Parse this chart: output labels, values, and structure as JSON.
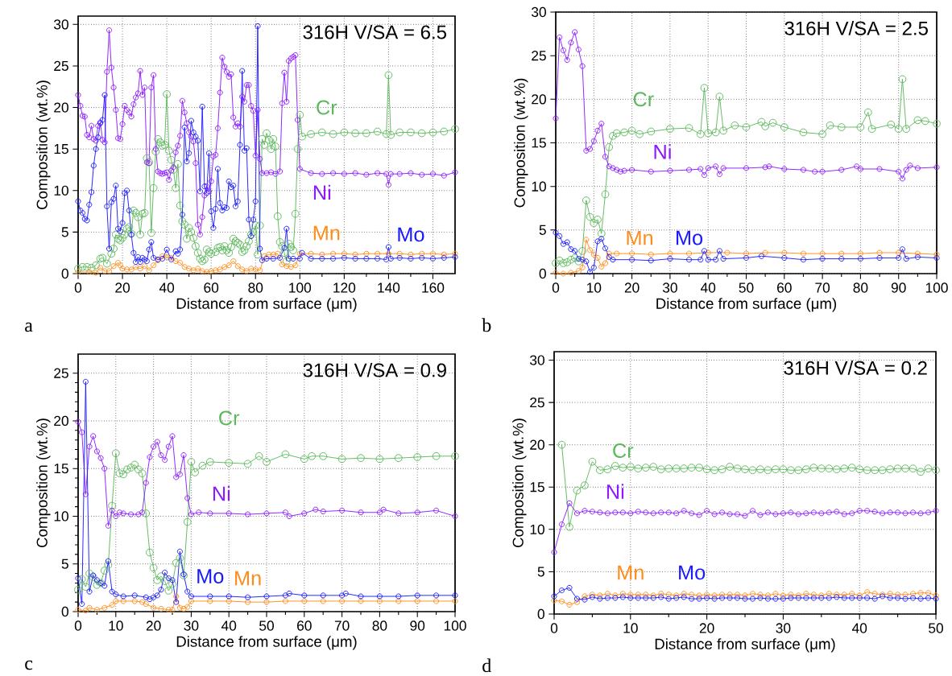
{
  "chart_data": [
    {
      "type": "line",
      "title": "316H V/SA = 6.5",
      "xlabel": "Distance from surface (μm)",
      "ylabel": "Composition (wt.%)",
      "annotations": [
        "a"
      ],
      "grid": true,
      "marker": "circle",
      "xlim": [
        0,
        170
      ],
      "xticks": [
        0,
        20,
        40,
        60,
        80,
        100,
        120,
        140,
        160
      ],
      "ylim": [
        0,
        31
      ],
      "yticks": [
        0,
        5,
        10,
        15,
        20,
        25,
        30
      ],
      "series": [
        {
          "name": "Cr",
          "color": "#5cb85c",
          "x": [
            0,
            2,
            4,
            6,
            8,
            10,
            11,
            13,
            15,
            16,
            17,
            18,
            19,
            20,
            21,
            22,
            23,
            24,
            25,
            26,
            27,
            28,
            29,
            30,
            31,
            32,
            33,
            34,
            35,
            36,
            37,
            38,
            39,
            40,
            41,
            42,
            43,
            44,
            45,
            46,
            47,
            48,
            49,
            50,
            51,
            52,
            53,
            54,
            55,
            56,
            57,
            58,
            59,
            60,
            62,
            63,
            64,
            65,
            66,
            67,
            68,
            69,
            70,
            71,
            72,
            73,
            74,
            75,
            76,
            77,
            78,
            79,
            80,
            81,
            82,
            83,
            84,
            85,
            86,
            87,
            88,
            89,
            90,
            91,
            92,
            93,
            94,
            95,
            96,
            97,
            98,
            99,
            100,
            101,
            105,
            110,
            115,
            120,
            125,
            130,
            135,
            139,
            140,
            141,
            145,
            150,
            155,
            160,
            165,
            170
          ],
          "values": [
            0.6,
            0.8,
            0.8,
            0.7,
            1.0,
            1.8,
            1.9,
            1.2,
            2.4,
            3.0,
            4.7,
            4.2,
            4.0,
            4.3,
            4.7,
            5.4,
            5.6,
            4.8,
            7.6,
            7.3,
            6.8,
            4.7,
            7.2,
            7.3,
            13.9,
            13.4,
            4.9,
            10.3,
            14.7,
            16.2,
            15.8,
            15.4,
            15.5,
            21.6,
            14.8,
            13.7,
            12.5,
            10.3,
            13.2,
            8.2,
            6.3,
            5.9,
            4.2,
            5.5,
            5.0,
            4.3,
            3.3,
            2.5,
            1.8,
            1.5,
            1.7,
            2.9,
            2.6,
            2.4,
            2.6,
            3.1,
            3.2,
            2.8,
            3.3,
            2.8,
            2.5,
            3.2,
            4.2,
            3.9,
            3.7,
            3.5,
            2.6,
            2.8,
            3.3,
            3.9,
            4.7,
            5.0,
            5.8,
            2.3,
            5.8,
            16.2,
            15.5,
            16.9,
            16.1,
            15.0,
            16.2,
            15.3,
            6.9,
            3.8,
            3.3,
            2.5,
            1.5,
            3.6,
            3.2,
            2.8,
            7.2,
            15.0,
            19.1,
            16.5,
            16.8,
            17.0,
            16.8,
            17.0,
            16.9,
            16.9,
            17.1,
            16.8,
            23.9,
            16.7,
            17.0,
            17.0,
            16.9,
            17.0,
            17.1,
            17.4
          ]
        },
        {
          "name": "Ni",
          "color": "#8c1aff",
          "x": [
            0,
            1,
            2,
            3,
            4,
            5,
            6,
            7,
            8,
            9,
            10,
            11,
            12,
            13,
            14,
            15,
            16,
            17,
            18,
            19,
            20,
            21,
            22,
            23,
            24,
            25,
            26,
            27,
            28,
            29,
            30,
            31,
            32,
            33,
            34,
            35,
            36,
            37,
            38,
            39,
            40,
            41,
            42,
            43,
            44,
            45,
            46,
            47,
            48,
            49,
            50,
            51,
            52,
            53,
            54,
            55,
            56,
            57,
            58,
            59,
            60,
            61,
            62,
            63,
            64,
            65,
            66,
            67,
            68,
            69,
            70,
            71,
            72,
            73,
            74,
            75,
            76,
            77,
            78,
            79,
            80,
            81,
            82,
            83,
            85,
            87,
            89,
            91,
            92,
            93,
            94,
            95,
            96,
            97,
            98,
            99,
            100,
            105,
            110,
            115,
            120,
            125,
            130,
            135,
            139,
            140,
            141,
            145,
            150,
            155,
            160,
            165,
            170
          ],
          "values": [
            21.5,
            20.2,
            19.0,
            18.9,
            16.7,
            16.4,
            17.8,
            16.2,
            16.0,
            17.8,
            18.2,
            16.1,
            15.8,
            24.3,
            29.3,
            24.8,
            22.4,
            19.7,
            16.3,
            16.2,
            18.0,
            20.2,
            19.7,
            19.4,
            18.9,
            20.4,
            21.2,
            21.7,
            24.4,
            21.5,
            22.4,
            13.4,
            13.3,
            22.4,
            23.9,
            15.0,
            12.3,
            12.1,
            12.0,
            12.1,
            12.2,
            11.3,
            12.4,
            12.8,
            14.6,
            15.4,
            16.6,
            20.8,
            19.4,
            18.1,
            17.0,
            16.5,
            15.9,
            13.3,
            5.9,
            4.7,
            6.8,
            9.4,
            10.5,
            9.9,
            11.1,
            14.1,
            14.3,
            17.5,
            21.8,
            26.0,
            24.9,
            24.3,
            23.7,
            24.0,
            18.8,
            17.7,
            18.1,
            17.7,
            21.3,
            20.7,
            22.7,
            22.7,
            20.2,
            19.6,
            14.2,
            19.7,
            13.8,
            12.1,
            12.1,
            12.2,
            12.0,
            12.3,
            20.5,
            24.2,
            20.7,
            25.6,
            25.9,
            26.1,
            26.3,
            18.5,
            12.6,
            12.1,
            12.0,
            12.1,
            12.0,
            12.1,
            11.9,
            12.1,
            12.0,
            10.7,
            12.0,
            12.0,
            12.1,
            11.9,
            12.0,
            11.8,
            12.2
          ]
        },
        {
          "name": "Mn",
          "color": "#ff8c1a",
          "x": [
            0,
            5,
            8,
            10,
            12,
            14,
            16,
            18,
            19,
            20,
            22,
            24,
            26,
            28,
            30,
            32,
            34,
            36,
            38,
            40,
            42,
            44,
            46,
            48,
            50,
            52,
            54,
            56,
            58,
            60,
            62,
            64,
            66,
            68,
            70,
            72,
            74,
            76,
            78,
            80,
            82,
            84,
            86,
            88,
            90,
            92,
            94,
            96,
            98,
            100,
            105,
            110,
            115,
            120,
            125,
            130,
            135,
            140,
            145,
            150,
            155,
            160,
            165,
            170
          ],
          "values": [
            0.2,
            0.2,
            0.1,
            0.7,
            0.3,
            0.3,
            0.9,
            1.3,
            1.0,
            0.6,
            0.5,
            0.5,
            0.8,
            0.6,
            0.9,
            0.4,
            1.0,
            1.6,
            2.1,
            2.0,
            1.9,
            1.5,
            1.3,
            0.8,
            0.6,
            0.4,
            0.6,
            0.3,
            0.2,
            0.3,
            0.4,
            0.5,
            0.8,
            1.0,
            1.5,
            0.9,
            0.5,
            0.3,
            0.6,
            0.5,
            0.4,
            2.1,
            2.3,
            2.3,
            2.4,
            1.1,
            0.9,
            0.8,
            1.0,
            2.4,
            2.4,
            2.3,
            2.4,
            2.4,
            2.3,
            2.4,
            2.4,
            2.4,
            2.4,
            2.3,
            2.4,
            2.4,
            2.3,
            2.4
          ]
        },
        {
          "name": "Mo",
          "color": "#1a1aff",
          "x": [
            0,
            1,
            2,
            3,
            4,
            5,
            6,
            7,
            8,
            9,
            10,
            11,
            12,
            13,
            14,
            15,
            16,
            17,
            18,
            19,
            20,
            21,
            22,
            23,
            24,
            25,
            26,
            27,
            28,
            29,
            30,
            31,
            32,
            33,
            34,
            36,
            38,
            40,
            42,
            44,
            45,
            46,
            47,
            48,
            49,
            50,
            51,
            52,
            53,
            54,
            55,
            56,
            57,
            58,
            59,
            60,
            61,
            62,
            63,
            64,
            65,
            66,
            67,
            68,
            69,
            70,
            71,
            72,
            73,
            74,
            75,
            76,
            77,
            78,
            79,
            80,
            81,
            82,
            83,
            85,
            88,
            91,
            93,
            94,
            95,
            97,
            100,
            101,
            105,
            110,
            115,
            120,
            125,
            130,
            135,
            139,
            140,
            141,
            145,
            150,
            155,
            160,
            165,
            170
          ],
          "values": [
            8.7,
            7.6,
            7.3,
            6.6,
            6.4,
            8.3,
            9.8,
            13.0,
            15.0,
            16.4,
            18.1,
            18.5,
            21.5,
            8.1,
            3.0,
            8.6,
            9.0,
            10.6,
            5.4,
            5.1,
            6.1,
            9.7,
            10.0,
            7.6,
            4.7,
            2.5,
            1.4,
            2.0,
            1.4,
            1.9,
            1.7,
            1.5,
            2.9,
            3.8,
            1.9,
            1.7,
            1.8,
            2.9,
            1.7,
            2.7,
            2.4,
            2.9,
            7.1,
            17.6,
            13.5,
            14.5,
            18.4,
            17.0,
            16.5,
            16.0,
            9.9,
            20.1,
            10.5,
            9.7,
            14.5,
            7.5,
            5.5,
            7.8,
            12.6,
            8.5,
            7.6,
            8.0,
            7.9,
            11.1,
            10.4,
            10.6,
            8.1,
            8.7,
            15.5,
            24.4,
            14.8,
            15.1,
            6.5,
            4.5,
            6.5,
            8.7,
            29.8,
            3.0,
            1.6,
            1.8,
            1.8,
            1.9,
            3.1,
            5.4,
            1.8,
            1.8,
            1.8,
            2.5,
            1.8,
            1.8,
            1.8,
            1.9,
            1.8,
            1.8,
            1.8,
            1.7,
            3.2,
            1.8,
            1.9,
            1.8,
            1.9,
            1.8,
            1.9,
            2.0
          ]
        }
      ]
    },
    {
      "type": "line",
      "title": "316H V/SA = 2.5",
      "xlabel": "Distance from surface (μm)",
      "ylabel": "Composition (wt.%)",
      "annotations": [
        "b"
      ],
      "grid": true,
      "marker": "circle",
      "xlim": [
        0,
        100
      ],
      "xticks": [
        0,
        10,
        20,
        30,
        40,
        50,
        60,
        70,
        80,
        90,
        100
      ],
      "ylim": [
        0,
        30
      ],
      "yticks": [
        0,
        5,
        10,
        15,
        20,
        25,
        30
      ],
      "series": [
        {
          "name": "Cr",
          "color": "#5cb85c",
          "x": [
            0,
            1,
            2,
            3,
            4,
            5,
            6,
            7,
            8,
            9,
            10,
            11,
            12,
            13,
            14,
            15,
            16,
            18,
            20,
            22,
            25,
            30,
            35,
            38,
            39,
            40,
            42,
            43,
            44,
            47,
            50,
            54,
            55,
            57,
            60,
            65,
            70,
            72,
            75,
            80,
            82,
            83,
            88,
            90,
            91,
            92,
            95,
            97,
            100
          ],
          "values": [
            1.2,
            1.5,
            1.2,
            1.3,
            1.6,
            1.8,
            1.4,
            2.6,
            8.4,
            6.5,
            5.8,
            6.2,
            4.6,
            9.1,
            14.5,
            15.8,
            16.1,
            16.2,
            16.4,
            16.0,
            16.3,
            16.6,
            16.7,
            16.0,
            21.3,
            16.1,
            16.2,
            20.3,
            16.4,
            17.0,
            16.8,
            17.4,
            16.9,
            17.3,
            16.8,
            16.2,
            16.0,
            17.0,
            16.8,
            16.8,
            18.5,
            16.6,
            17.1,
            16.6,
            22.3,
            16.6,
            17.6,
            17.5,
            17.2
          ]
        },
        {
          "name": "Ni",
          "color": "#8c1aff",
          "x": [
            0,
            1,
            2,
            3,
            4,
            5,
            6,
            7,
            8,
            9,
            10,
            11,
            12,
            13,
            14,
            15,
            16,
            17,
            18,
            20,
            25,
            30,
            35,
            38,
            39,
            40,
            42,
            43,
            44,
            50,
            55,
            56,
            60,
            65,
            68,
            70,
            75,
            79,
            80,
            85,
            90,
            91,
            92,
            93,
            95,
            100
          ],
          "values": [
            17.8,
            27.1,
            25.6,
            24.5,
            26.5,
            27.7,
            25.7,
            23.8,
            14.1,
            14.3,
            15.2,
            16.4,
            17.2,
            13.4,
            12.3,
            12.1,
            11.9,
            11.7,
            11.8,
            11.9,
            11.7,
            11.8,
            11.9,
            12.0,
            11.3,
            12.1,
            12.3,
            11.4,
            12.1,
            12.1,
            12.2,
            12.3,
            12.0,
            11.9,
            11.7,
            11.7,
            11.9,
            12.3,
            12.0,
            12.0,
            11.7,
            10.9,
            11.9,
            12.4,
            12.1,
            12.2
          ]
        },
        {
          "name": "Mn",
          "color": "#ff8c1a",
          "x": [
            0,
            2,
            4,
            6,
            7,
            8,
            9,
            10,
            11,
            12,
            13,
            14,
            16,
            20,
            25,
            30,
            35,
            40,
            45,
            50,
            55,
            60,
            65,
            70,
            75,
            80,
            85,
            90,
            95,
            100
          ],
          "values": [
            0.1,
            0.0,
            0.1,
            0.3,
            0.7,
            3.9,
            2.7,
            2.2,
            1.8,
            0.8,
            1.2,
            2.3,
            2.3,
            2.3,
            2.2,
            2.3,
            2.3,
            2.4,
            2.4,
            2.3,
            2.4,
            2.4,
            2.3,
            2.3,
            2.3,
            2.3,
            2.4,
            2.4,
            2.3,
            2.2
          ]
        },
        {
          "name": "Mo",
          "color": "#1a1aff",
          "x": [
            0,
            1,
            2,
            3,
            4,
            5,
            6,
            7,
            8,
            9,
            10,
            11,
            12,
            13,
            14,
            15,
            20,
            25,
            30,
            35,
            38,
            39,
            40,
            42,
            43,
            44,
            50,
            54,
            60,
            65,
            70,
            75,
            80,
            85,
            90,
            91,
            92,
            95,
            100
          ],
          "values": [
            4.7,
            4.3,
            3.4,
            3.6,
            2.8,
            2.6,
            1.7,
            1.6,
            1.4,
            0.2,
            0.7,
            3.7,
            4.0,
            2.9,
            1.9,
            1.6,
            1.6,
            1.5,
            1.7,
            1.6,
            1.6,
            2.6,
            1.6,
            1.6,
            2.6,
            1.7,
            1.8,
            2.0,
            1.8,
            1.6,
            1.7,
            1.7,
            1.7,
            1.8,
            1.8,
            2.8,
            1.7,
            1.9,
            1.8
          ]
        }
      ]
    },
    {
      "type": "line",
      "title": "316H V/SA = 0.9",
      "xlabel": "Distance from surface (μm)",
      "ylabel": "Composition (wt.%)",
      "annotations": [
        "c"
      ],
      "grid": true,
      "marker": "circle",
      "xlim": [
        0,
        100
      ],
      "xticks": [
        0,
        10,
        20,
        30,
        40,
        50,
        60,
        70,
        80,
        90,
        100
      ],
      "ylim": [
        0,
        27
      ],
      "yticks": [
        0,
        5,
        10,
        15,
        20,
        25
      ],
      "series": [
        {
          "name": "Cr",
          "color": "#5cb85c",
          "x": [
            0,
            1,
            2,
            3,
            4,
            5,
            6,
            7,
            8,
            9,
            10,
            11,
            12,
            13,
            14,
            15,
            16,
            17,
            18,
            19,
            20,
            21,
            22,
            23,
            24,
            25,
            26,
            27,
            28,
            29,
            30,
            31,
            33,
            35,
            40,
            45,
            48,
            50,
            55,
            60,
            62,
            65,
            70,
            75,
            80,
            85,
            90,
            95,
            100
          ],
          "values": [
            2.3,
            3.4,
            2.6,
            4.0,
            3.6,
            2.8,
            3.0,
            4.3,
            4.9,
            11.1,
            16.6,
            14.5,
            14.4,
            14.9,
            15.1,
            15.4,
            14.9,
            14.5,
            10.3,
            6.2,
            4.6,
            3.3,
            3.7,
            3.2,
            2.2,
            2.9,
            5.1,
            5.6,
            3.8,
            9.4,
            15.7,
            14.6,
            15.3,
            15.7,
            15.6,
            15.5,
            16.3,
            15.7,
            16.5,
            16.0,
            16.3,
            16.3,
            16.0,
            16.1,
            16.0,
            16.1,
            16.2,
            16.3,
            16.3
          ]
        },
        {
          "name": "Ni",
          "color": "#8c1aff",
          "x": [
            0,
            1,
            2,
            3,
            4,
            5,
            6,
            7,
            8,
            9,
            10,
            11,
            12,
            14,
            16,
            17,
            18,
            19,
            20,
            21,
            22,
            23,
            24,
            25,
            26,
            27,
            28,
            29,
            30,
            32,
            35,
            40,
            45,
            50,
            55,
            56,
            60,
            63,
            65,
            70,
            75,
            80,
            81,
            85,
            90,
            95,
            100
          ],
          "values": [
            19.9,
            18.8,
            12.3,
            17.3,
            18.4,
            16.8,
            16.1,
            15.0,
            9.0,
            10.6,
            10.0,
            10.4,
            10.3,
            10.2,
            10.2,
            10.4,
            13.5,
            16.2,
            17.3,
            17.8,
            16.4,
            15.9,
            17.3,
            18.4,
            14.1,
            14.4,
            16.4,
            11.9,
            10.2,
            10.4,
            10.3,
            10.3,
            10.2,
            10.3,
            10.4,
            10.0,
            10.3,
            10.7,
            10.5,
            10.6,
            10.4,
            10.4,
            10.7,
            10.3,
            10.4,
            10.6,
            10.0
          ]
        },
        {
          "name": "Mn",
          "color": "#ff8c1a",
          "x": [
            0,
            2,
            3,
            5,
            7,
            9,
            10,
            12,
            15,
            17,
            18,
            20,
            22,
            24,
            25,
            26,
            27,
            28,
            29,
            30,
            35,
            40,
            45,
            50,
            55,
            60,
            65,
            70,
            75,
            80,
            85,
            90,
            95,
            100
          ],
          "values": [
            0.2,
            0.1,
            0.4,
            0.2,
            0.4,
            0.7,
            1.1,
            1.1,
            1.1,
            1.0,
            0.8,
            0.4,
            0.3,
            0.2,
            0.2,
            1.6,
            0.4,
            0.3,
            0.5,
            1.1,
            1.1,
            1.1,
            1.0,
            1.0,
            1.1,
            1.1,
            1.1,
            1.1,
            1.1,
            1.1,
            1.1,
            1.1,
            1.1,
            1.1
          ]
        },
        {
          "name": "Mo",
          "color": "#1a1aff",
          "x": [
            0,
            1,
            2,
            3,
            4,
            5,
            6,
            7,
            8,
            9,
            10,
            12,
            15,
            18,
            19,
            20,
            21,
            22,
            23,
            24,
            25,
            26,
            27,
            28,
            29,
            30,
            35,
            40,
            45,
            50,
            55,
            56,
            60,
            65,
            70,
            71,
            75,
            80,
            85,
            90,
            95,
            100
          ],
          "values": [
            3.5,
            0.8,
            24.1,
            2.1,
            3.8,
            3.3,
            3.0,
            2.7,
            5.3,
            2.1,
            1.8,
            1.6,
            1.7,
            1.5,
            1.3,
            1.5,
            1.7,
            2.3,
            4.1,
            3.5,
            3.3,
            1.0,
            6.3,
            3.9,
            2.1,
            1.6,
            1.6,
            1.6,
            1.5,
            1.6,
            1.7,
            1.9,
            1.7,
            1.7,
            1.7,
            1.9,
            1.6,
            1.6,
            1.6,
            1.7,
            1.7,
            1.7
          ]
        }
      ]
    },
    {
      "type": "line",
      "title": "316H V/SA = 0.2",
      "xlabel": "Distance from surface (μm)",
      "ylabel": "Composition (wt.%)",
      "annotations": [
        "d"
      ],
      "grid": true,
      "marker": "circle",
      "xlim": [
        0,
        50
      ],
      "xticks": [
        0,
        10,
        20,
        30,
        40,
        50
      ],
      "ylim": [
        0,
        31
      ],
      "yticks": [
        0,
        5,
        10,
        15,
        20,
        25,
        30
      ],
      "x": [
        0,
        1,
        2,
        3,
        4,
        5,
        6,
        7,
        8,
        9,
        10,
        11,
        12,
        13,
        14,
        15,
        16,
        17,
        18,
        19,
        20,
        21,
        22,
        23,
        24,
        25,
        26,
        27,
        28,
        29,
        30,
        31,
        32,
        33,
        34,
        35,
        36,
        37,
        38,
        39,
        40,
        41,
        42,
        43,
        44,
        45,
        46,
        47,
        48,
        49,
        50
      ],
      "series": [
        {
          "name": "Cr",
          "color": "#5cb85c",
          "values": [
            null,
            20.0,
            10.3,
            14.6,
            15.2,
            18.0,
            17.0,
            17.1,
            17.5,
            17.3,
            17.4,
            17.2,
            17.3,
            17.4,
            17.1,
            17.2,
            17.2,
            17.2,
            17.3,
            17.3,
            17.1,
            17.0,
            17.1,
            17.4,
            17.2,
            17.1,
            17.0,
            17.1,
            17.0,
            17.1,
            17.1,
            17.0,
            17.0,
            17.1,
            17.3,
            17.2,
            17.2,
            17.1,
            17.2,
            17.3,
            17.1,
            17.0,
            17.0,
            17.0,
            17.1,
            17.2,
            17.2,
            17.2,
            16.8,
            17.2,
            17.0
          ]
        },
        {
          "name": "Ni",
          "color": "#8c1aff",
          "values": [
            7.3,
            10.6,
            13.1,
            11.9,
            12.2,
            12.1,
            12.0,
            11.9,
            12.0,
            12.0,
            11.9,
            12.1,
            12.0,
            11.9,
            12.0,
            12.0,
            11.9,
            12.2,
            11.9,
            11.7,
            12.2,
            11.8,
            12.0,
            11.8,
            11.8,
            11.6,
            12.2,
            11.7,
            12.0,
            11.8,
            11.9,
            12.0,
            11.8,
            11.9,
            12.0,
            11.9,
            12.0,
            12.1,
            11.8,
            11.9,
            12.2,
            12.2,
            12.1,
            11.9,
            12.0,
            12.0,
            11.9,
            12.0,
            11.9,
            12.0,
            12.2
          ]
        },
        {
          "name": "Mn",
          "color": "#ff8c1a",
          "values": [
            1.6,
            1.5,
            1.1,
            1.4,
            2.1,
            2.3,
            2.2,
            2.4,
            2.2,
            2.4,
            2.3,
            2.3,
            2.3,
            2.2,
            2.4,
            2.3,
            2.2,
            2.4,
            2.3,
            2.2,
            2.3,
            2.2,
            2.3,
            2.3,
            2.3,
            2.2,
            2.4,
            2.3,
            2.2,
            2.4,
            2.2,
            2.3,
            2.2,
            2.4,
            2.3,
            2.2,
            2.4,
            2.3,
            2.3,
            2.4,
            2.2,
            2.6,
            2.4,
            2.3,
            2.4,
            2.3,
            2.3,
            2.4,
            2.5,
            2.5,
            2.2
          ]
        },
        {
          "name": "Mo",
          "color": "#1a1aff",
          "values": [
            2.1,
            2.8,
            3.1,
            1.8,
            1.7,
            2.0,
            1.8,
            1.9,
            1.9,
            2.0,
            1.9,
            1.9,
            1.9,
            1.9,
            2.0,
            1.8,
            1.9,
            2.0,
            1.8,
            1.8,
            1.9,
            1.8,
            1.9,
            1.9,
            1.9,
            1.8,
            1.8,
            1.9,
            1.8,
            1.8,
            1.8,
            1.9,
            1.9,
            1.9,
            1.9,
            1.9,
            1.9,
            2.0,
            1.9,
            1.9,
            1.9,
            1.9,
            1.8,
            2.1,
            1.9,
            1.9,
            1.8,
            1.9,
            1.8,
            1.9,
            1.8
          ]
        }
      ]
    }
  ]
}
